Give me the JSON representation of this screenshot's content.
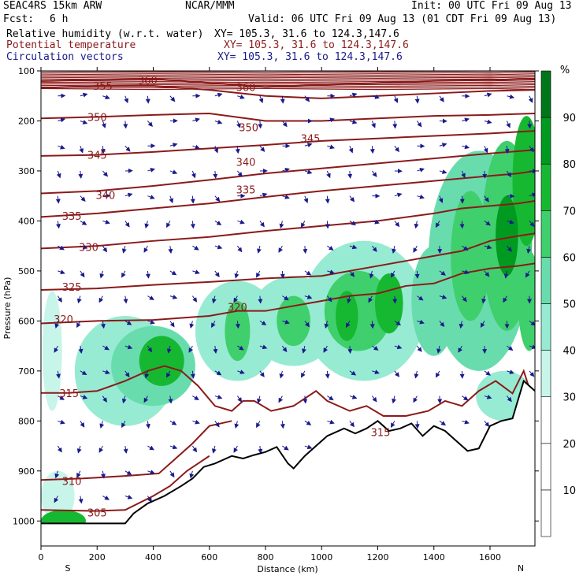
{
  "header": {
    "model": "SEAC4RS 15km ARW",
    "org": "NCAR/MMM",
    "init": "Init: 00 UTC Fri 09 Aug 13",
    "fcst_label": "Fcst:",
    "fcst_value": "6 h",
    "valid": "Valid: 06 UTC Fri 09 Aug 13 (01 CDT Fri 09 Aug 13)",
    "fields": [
      {
        "name": "Relative humidity (w.r.t. water)",
        "xy": "XY= 105.3, 31.6 to 124.3,147.6",
        "color": "#000000"
      },
      {
        "name": "Potential temperature",
        "xy": "XY= 105.3, 31.6 to 124.3,147.6",
        "color": "#8b1a1a"
      },
      {
        "name": "Circulation vectors",
        "xy": "XY= 105.3, 31.6 to 124.3,147.6",
        "color": "#1a1a8b"
      }
    ]
  },
  "colors": {
    "theta_contour": "#8b1a1a",
    "vectors": "#1a1a8b",
    "terrain": "#000000",
    "rh_fill": [
      "#ffffff",
      "#ffffff",
      "#ffffff",
      "#c8f5ea",
      "#96ebd2",
      "#69dcae",
      "#3fcf6c",
      "#16b832",
      "#009a21",
      "#00761a"
    ]
  },
  "chart_data": {
    "type": "heatmap",
    "xlabel": "Distance (km)",
    "ylabel": "Pressure (hPa)",
    "xlim": [
      0,
      1760
    ],
    "ylim": [
      1050,
      100
    ],
    "x_ticks": [
      "0",
      "200",
      "400",
      "600",
      "800",
      "1000",
      "1200",
      "1400",
      "1600"
    ],
    "y_ticks": [
      "100",
      "200",
      "300",
      "400",
      "500",
      "600",
      "700",
      "800",
      "900",
      "1000"
    ],
    "endpoints": {
      "left": "S",
      "right": "N"
    },
    "colorbar": {
      "unit": "%",
      "labels": [
        "10",
        "20",
        "30",
        "40",
        "50",
        "60",
        "70",
        "80",
        "90"
      ],
      "bins": [
        0,
        10,
        20,
        30,
        40,
        50,
        60,
        70,
        80,
        90,
        100
      ]
    },
    "theta_contour_labels": [
      {
        "text": "360",
        "x": 380,
        "p": 118
      },
      {
        "text": "355",
        "x": 220,
        "p": 130
      },
      {
        "text": "360",
        "x": 730,
        "p": 132
      },
      {
        "text": "350",
        "x": 200,
        "p": 192
      },
      {
        "text": "350",
        "x": 740,
        "p": 213
      },
      {
        "text": "345",
        "x": 960,
        "p": 235
      },
      {
        "text": "345",
        "x": 200,
        "p": 268
      },
      {
        "text": "340",
        "x": 730,
        "p": 282
      },
      {
        "text": "340",
        "x": 230,
        "p": 348
      },
      {
        "text": "335",
        "x": 730,
        "p": 337
      },
      {
        "text": "335",
        "x": 110,
        "p": 390
      },
      {
        "text": "330",
        "x": 170,
        "p": 452
      },
      {
        "text": "325",
        "x": 110,
        "p": 532
      },
      {
        "text": "320",
        "x": 700,
        "p": 572
      },
      {
        "text": "320",
        "x": 80,
        "p": 596
      },
      {
        "text": "315",
        "x": 100,
        "p": 744
      },
      {
        "text": "315",
        "x": 1210,
        "p": 822
      },
      {
        "text": "310",
        "x": 110,
        "p": 920
      },
      {
        "text": "305",
        "x": 200,
        "p": 983
      }
    ],
    "terrain_surface": {
      "x": [
        0,
        300,
        330,
        380,
        440,
        500,
        540,
        580,
        620,
        680,
        720,
        760,
        800,
        840,
        880,
        900,
        940,
        980,
        1020,
        1080,
        1120,
        1160,
        1200,
        1240,
        1280,
        1320,
        1360,
        1400,
        1440,
        1480,
        1520,
        1560,
        1600,
        1640,
        1680,
        1720,
        1760
      ],
      "p": [
        1005,
        1005,
        985,
        965,
        950,
        930,
        915,
        892,
        885,
        870,
        875,
        868,
        862,
        852,
        885,
        895,
        870,
        850,
        830,
        815,
        825,
        815,
        800,
        820,
        815,
        805,
        830,
        810,
        820,
        840,
        860,
        855,
        810,
        800,
        795,
        720,
        740
      ]
    },
    "theta_contours": [
      {
        "level": 305,
        "x": [
          0,
          200,
          300,
          400,
          460,
          520,
          600
        ],
        "p": [
          978,
          980,
          978,
          950,
          930,
          900,
          870
        ]
      },
      {
        "level": 310,
        "x": [
          0,
          150,
          300,
          420,
          470,
          540,
          600,
          680
        ],
        "p": [
          918,
          915,
          910,
          905,
          880,
          845,
          810,
          800
        ]
      },
      {
        "level": 315,
        "x": [
          0,
          100,
          200,
          300,
          380,
          440,
          500,
          560,
          620,
          680,
          720,
          760,
          820,
          900,
          980,
          1020,
          1100,
          1160,
          1220,
          1300,
          1380,
          1440,
          1500,
          1560,
          1620,
          1680,
          1720,
          1760
        ],
        "p": [
          744,
          744,
          740,
          720,
          700,
          690,
          700,
          730,
          770,
          780,
          760,
          760,
          780,
          770,
          740,
          760,
          780,
          770,
          790,
          790,
          780,
          760,
          770,
          740,
          720,
          745,
          700,
          770
        ]
      },
      {
        "level": 320,
        "x": [
          0,
          200,
          400,
          600,
          700,
          800,
          900,
          1000,
          1100,
          1200,
          1300,
          1400,
          1500,
          1600,
          1700,
          1760
        ],
        "p": [
          605,
          600,
          598,
          590,
          580,
          580,
          570,
          560,
          550,
          545,
          530,
          525,
          505,
          495,
          490,
          485
        ]
      },
      {
        "level": 325,
        "x": [
          0,
          200,
          400,
          600,
          800,
          1000,
          1100,
          1200,
          1300,
          1400,
          1500,
          1600,
          1700,
          1760
        ],
        "p": [
          538,
          535,
          528,
          522,
          515,
          510,
          500,
          490,
          480,
          470,
          460,
          440,
          430,
          425
        ]
      },
      {
        "level": 330,
        "x": [
          0,
          200,
          400,
          600,
          800,
          1000,
          1200,
          1400,
          1500,
          1600,
          1700,
          1760
        ],
        "p": [
          455,
          450,
          440,
          432,
          420,
          410,
          400,
          385,
          375,
          370,
          365,
          360
        ]
      },
      {
        "level": 335,
        "x": [
          0,
          200,
          400,
          600,
          800,
          1000,
          1200,
          1400,
          1600,
          1700,
          1760
        ],
        "p": [
          392,
          385,
          375,
          365,
          352,
          340,
          330,
          320,
          310,
          305,
          300
        ]
      },
      {
        "level": 340,
        "x": [
          0,
          200,
          400,
          600,
          800,
          1000,
          1200,
          1400,
          1600,
          1760
        ],
        "p": [
          345,
          340,
          330,
          318,
          305,
          295,
          285,
          275,
          265,
          258
        ]
      },
      {
        "level": 345,
        "x": [
          0,
          200,
          400,
          600,
          800,
          1000,
          1200,
          1400,
          1600,
          1760
        ],
        "p": [
          270,
          268,
          262,
          255,
          248,
          240,
          235,
          230,
          225,
          220
        ]
      },
      {
        "level": 350,
        "x": [
          0,
          200,
          400,
          600,
          800,
          1000,
          1200,
          1400,
          1600,
          1760
        ],
        "p": [
          195,
          192,
          188,
          185,
          200,
          200,
          195,
          190,
          188,
          185
        ]
      },
      {
        "level": 355,
        "x": [
          0,
          200,
          400,
          600,
          800,
          1000,
          1200,
          1400,
          1600,
          1760
        ],
        "p": [
          134,
          130,
          130,
          138,
          150,
          155,
          150,
          145,
          140,
          138
        ]
      },
      {
        "level": 360,
        "x": [
          0,
          200,
          400,
          600,
          800,
          1000,
          1200,
          1400,
          1600,
          1760
        ],
        "p": [
          120,
          118,
          116,
          124,
          132,
          128,
          124,
          120,
          118,
          116
        ]
      }
    ],
    "rh_blobs": [
      {
        "x": 60,
        "p": 950,
        "rx": 60,
        "rp": 50,
        "rh": 38
      },
      {
        "x": 80,
        "p": 1000,
        "rx": 80,
        "rp": 22,
        "rh": 72
      },
      {
        "x": 40,
        "p": 660,
        "rx": 35,
        "rp": 120,
        "rh": 36
      },
      {
        "x": 300,
        "p": 700,
        "rx": 180,
        "rp": 110,
        "rh": 40
      },
      {
        "x": 400,
        "p": 690,
        "rx": 150,
        "rp": 80,
        "rh": 55
      },
      {
        "x": 430,
        "p": 680,
        "rx": 80,
        "rp": 50,
        "rh": 70
      },
      {
        "x": 700,
        "p": 620,
        "rx": 150,
        "rp": 100,
        "rh": 45
      },
      {
        "x": 700,
        "p": 620,
        "rx": 45,
        "rp": 60,
        "rh": 65
      },
      {
        "x": 900,
        "p": 600,
        "rx": 160,
        "rp": 90,
        "rh": 48
      },
      {
        "x": 900,
        "p": 600,
        "rx": 60,
        "rp": 50,
        "rh": 63
      },
      {
        "x": 1150,
        "p": 580,
        "rx": 220,
        "rp": 140,
        "rh": 48
      },
      {
        "x": 1130,
        "p": 580,
        "rx": 120,
        "rp": 80,
        "rh": 62
      },
      {
        "x": 1240,
        "p": 565,
        "rx": 50,
        "rp": 60,
        "rh": 78
      },
      {
        "x": 1090,
        "p": 590,
        "rx": 40,
        "rp": 50,
        "rh": 76
      },
      {
        "x": 1400,
        "p": 560,
        "rx": 80,
        "rp": 110,
        "rh": 55
      },
      {
        "x": 1560,
        "p": 480,
        "rx": 180,
        "rp": 220,
        "rh": 50
      },
      {
        "x": 1530,
        "p": 470,
        "rx": 70,
        "rp": 130,
        "rh": 66
      },
      {
        "x": 1660,
        "p": 430,
        "rx": 90,
        "rp": 190,
        "rh": 68
      },
      {
        "x": 1660,
        "p": 430,
        "rx": 40,
        "rp": 80,
        "rh": 80
      },
      {
        "x": 1730,
        "p": 320,
        "rx": 50,
        "rp": 130,
        "rh": 75
      },
      {
        "x": 1740,
        "p": 560,
        "rx": 40,
        "rp": 100,
        "rh": 62
      },
      {
        "x": 1650,
        "p": 750,
        "rx": 100,
        "rp": 50,
        "rh": 40
      }
    ]
  }
}
